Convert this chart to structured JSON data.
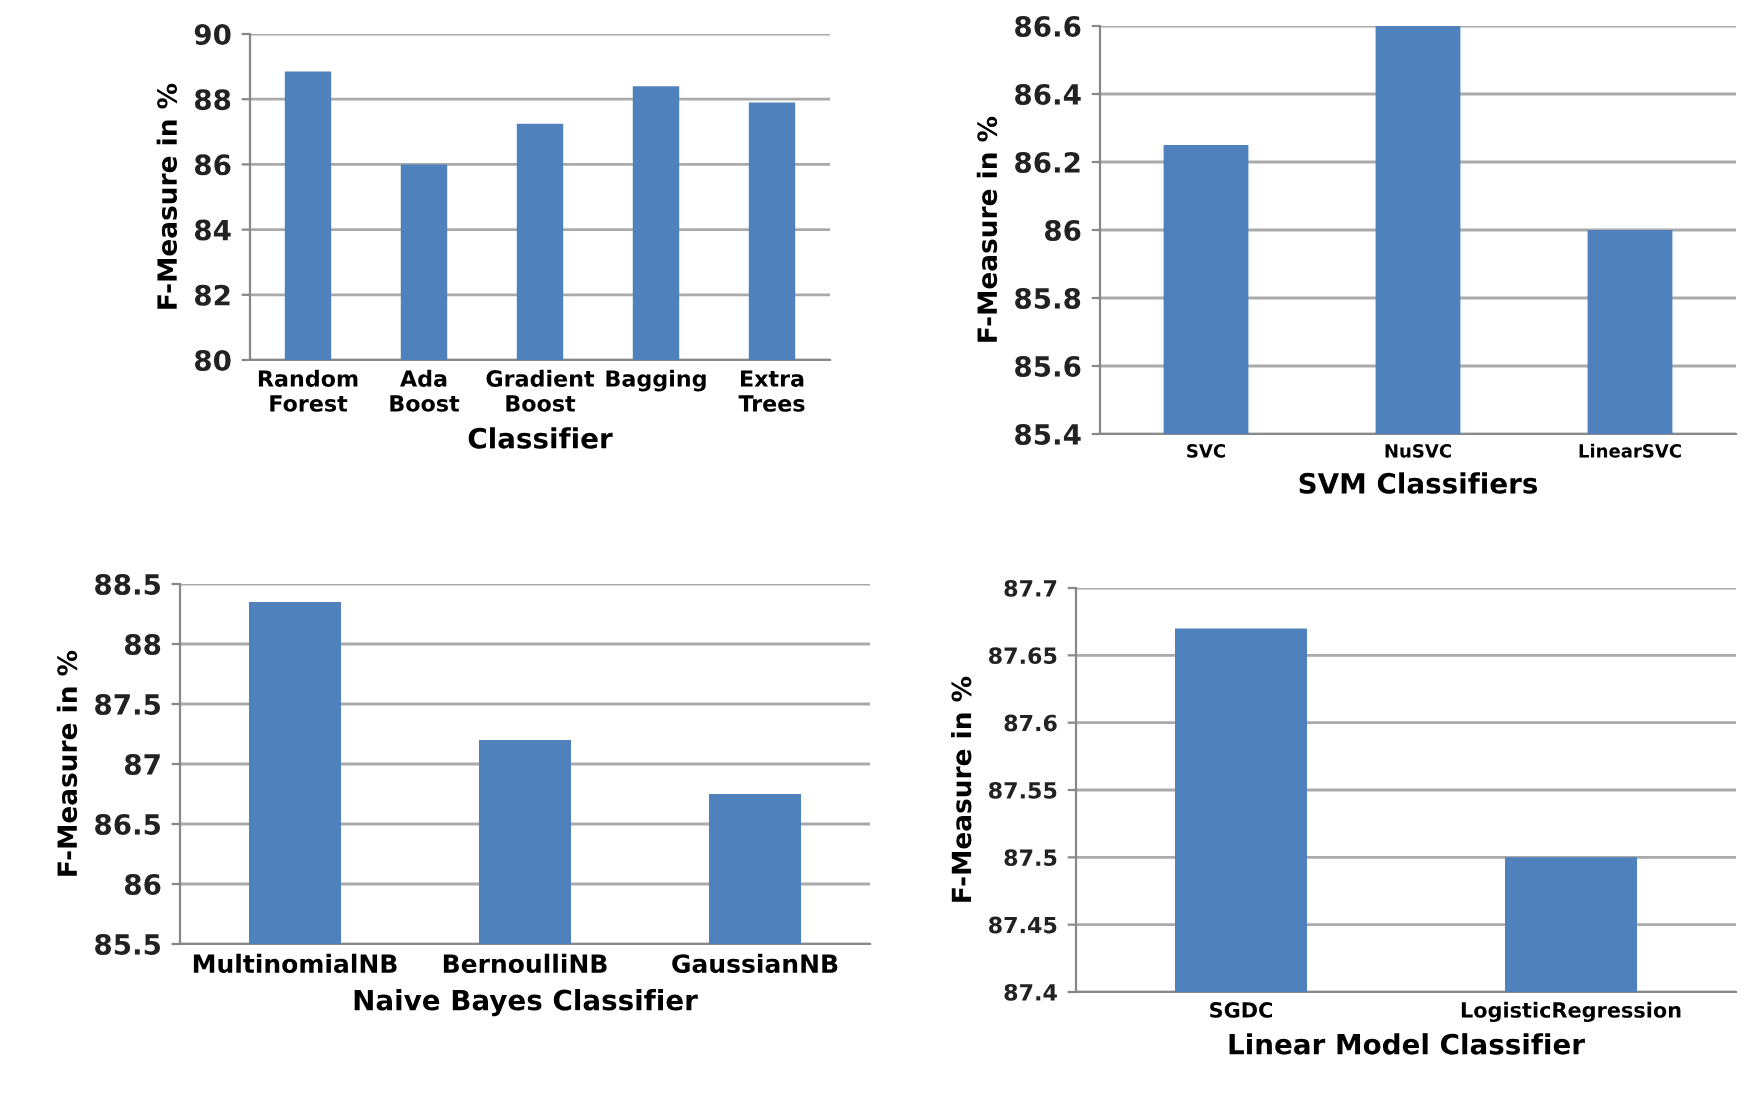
{
  "chart_data": [
    {
      "type": "bar",
      "xlabel": "Classifier",
      "ylabel": "F-Measure in %",
      "categories": [
        "Random\nForest",
        "Ada\nBoost",
        "Gradient\nBoost",
        "Bagging",
        "Extra\nTrees"
      ],
      "values": [
        88.85,
        86.0,
        87.25,
        88.4,
        87.9
      ],
      "color": "#4f81bd",
      "ylim": [
        80,
        90
      ],
      "yticks": [
        80,
        82,
        84,
        86,
        88,
        90
      ],
      "grid": "y",
      "legend": false
    },
    {
      "type": "bar",
      "xlabel": "SVM Classifiers",
      "ylabel": "F-Measure in %",
      "categories": [
        "SVC",
        "NuSVC",
        "LinearSVC"
      ],
      "values": [
        86.25,
        86.6,
        86.0
      ],
      "color": "#4f81bd",
      "ylim": [
        85.4,
        86.6
      ],
      "yticks": [
        85.4,
        85.6,
        85.8,
        86,
        86.2,
        86.4,
        86.6
      ],
      "grid": "y",
      "legend": false
    },
    {
      "type": "bar",
      "xlabel": "Naive Bayes Classifier",
      "ylabel": "F-Measure in %",
      "categories": [
        "MultinomialNB",
        "BernoulliNB",
        "GaussianNB"
      ],
      "values": [
        88.35,
        87.2,
        86.75
      ],
      "color": "#4f81bd",
      "ylim": [
        85.5,
        88.5
      ],
      "yticks": [
        85.5,
        86,
        86.5,
        87,
        87.5,
        88,
        88.5
      ],
      "grid": "y",
      "legend": false
    },
    {
      "type": "bar",
      "xlabel": "Linear Model Classifier",
      "ylabel": "F-Measure in %",
      "categories": [
        "SGDC",
        "LogisticRegression"
      ],
      "values": [
        87.67,
        87.5
      ],
      "color": "#4f81bd",
      "ylim": [
        87.4,
        87.7
      ],
      "yticks": [
        87.4,
        87.45,
        87.5,
        87.55,
        87.6,
        87.65,
        87.7
      ],
      "grid": "y",
      "legend": false
    }
  ]
}
